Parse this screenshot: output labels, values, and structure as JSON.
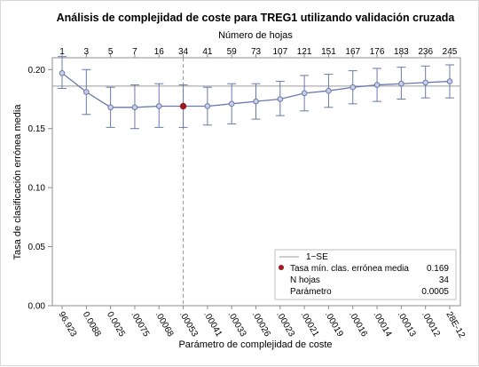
{
  "chart_data": {
    "type": "line",
    "title": "Análisis de complejidad de coste para TREG1 utilizando validación cruzada",
    "top_axis_label": "Número de hojas",
    "xlabel": "Parámetro de complejidad de coste",
    "ylabel": "Tasa de clasificación errónea media",
    "ylim": [
      0,
      0.21
    ],
    "yticks": [
      "0.00",
      "0.05",
      "0.10",
      "0.15",
      "0.20"
    ],
    "ytick_values": [
      0,
      0.05,
      0.1,
      0.15,
      0.2
    ],
    "grid": false,
    "legend_position": "bottom-right",
    "top_ticks": [
      "1",
      "3",
      "5",
      "7",
      "16",
      "34",
      "41",
      "59",
      "73",
      "107",
      "121",
      "151",
      "167",
      "176",
      "183",
      "236",
      "245"
    ],
    "bottom_ticks": [
      "96.923",
      "0.0088",
      "0.0025",
      ".00075",
      ".00068",
      ".00053",
      ".00041",
      ".00033",
      ".00026",
      ".00023",
      ".00021",
      ".00019",
      ".00016",
      ".00014",
      ".00013",
      ".00012",
      "28E-12"
    ],
    "series": [
      {
        "values": [
          0.197,
          0.181,
          0.168,
          0.168,
          0.169,
          0.169,
          0.169,
          0.171,
          0.173,
          0.175,
          0.18,
          0.182,
          0.185,
          0.187,
          0.188,
          0.189,
          0.19
        ],
        "lower": [
          0.184,
          0.162,
          0.151,
          0.15,
          0.151,
          0.151,
          0.153,
          0.154,
          0.158,
          0.161,
          0.165,
          0.168,
          0.171,
          0.173,
          0.175,
          0.176,
          0.176
        ],
        "upper": [
          0.211,
          0.2,
          0.185,
          0.187,
          0.188,
          0.187,
          0.185,
          0.188,
          0.188,
          0.19,
          0.195,
          0.196,
          0.199,
          0.201,
          0.202,
          0.203,
          0.204
        ]
      }
    ],
    "one_se_value": 0.186,
    "selected_index": 5,
    "reference_line_index": 5,
    "colors": {
      "series": "#6a78ad",
      "marker_fill": "#c9d0e6",
      "selected": "#9b1c1c",
      "one_se": "#9a9a9a",
      "reference": "#999999"
    },
    "legend": {
      "one_se_label": "1−SE",
      "min_label": "Tasa mín. clas. errónea media",
      "min_value": "0.169",
      "leaves_label": "N hojas",
      "leaves_value": "34",
      "param_label": "Parámetro",
      "param_value": "0.0005"
    }
  }
}
